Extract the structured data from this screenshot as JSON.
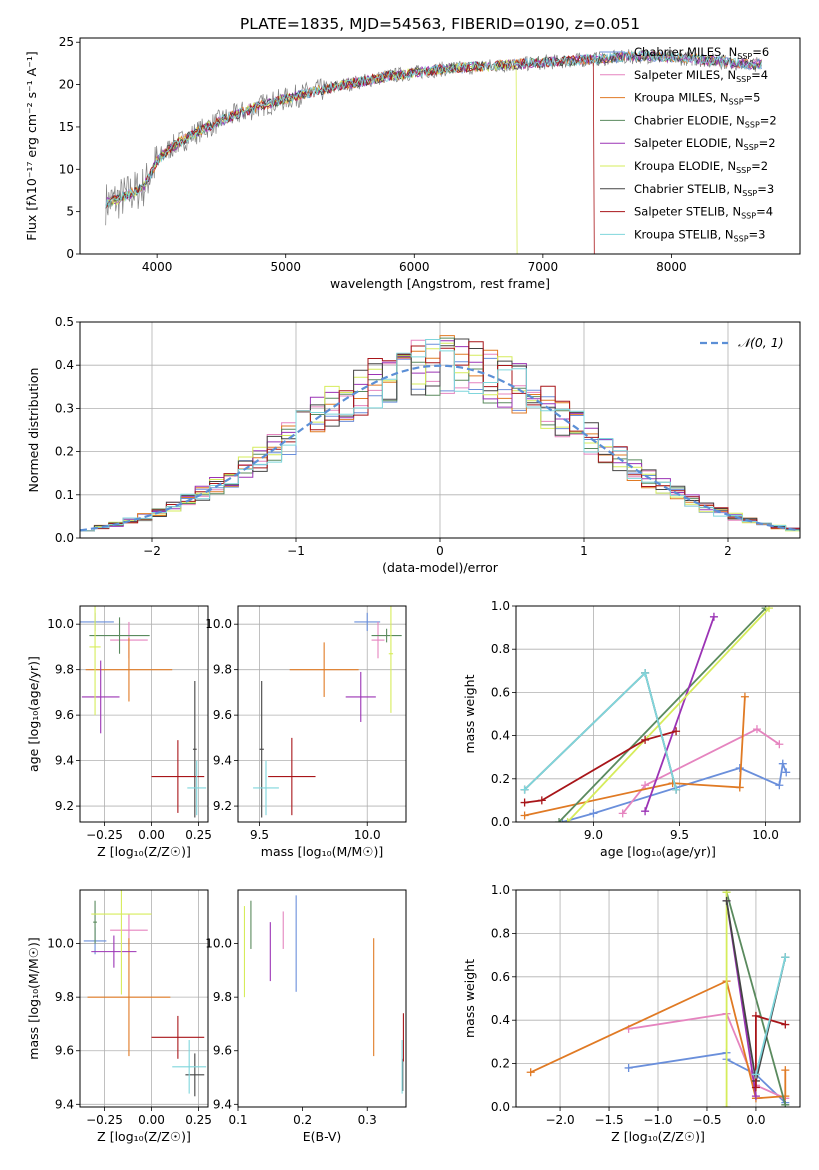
{
  "figure_title": "PLATE=1835, MJD=54563, FIBERID=0190, z=0.051",
  "colors": {
    "Chabrier MILES": "#6a8fdb",
    "Salpeter MILES": "#e584bf",
    "Kroupa MILES": "#e07a24",
    "Chabrier ELODIE": "#5a8a5e",
    "Salpeter ELODIE": "#9b33b5",
    "Kroupa ELODIE": "#d6ec5b",
    "Chabrier STELIB": "#444444",
    "Salpeter STELIB": "#a81519",
    "Kroupa STELIB": "#7fd6dc",
    "data": "#808080",
    "gaussian": "#5b8fd6"
  },
  "legend_spectrum": [
    {
      "name": "Chabrier MILES",
      "n": "6"
    },
    {
      "name": "Salpeter MILES",
      "n": "4"
    },
    {
      "name": "Kroupa MILES",
      "n": "5"
    },
    {
      "name": "Chabrier ELODIE",
      "n": "2"
    },
    {
      "name": "Salpeter ELODIE",
      "n": "2"
    },
    {
      "name": "Kroupa ELODIE",
      "n": "2"
    },
    {
      "name": "Chabrier STELIB",
      "n": "3"
    },
    {
      "name": "Salpeter STELIB",
      "n": "4"
    },
    {
      "name": "Kroupa STELIB",
      "n": "3"
    }
  ],
  "chart_data": [
    {
      "id": "spectrum",
      "type": "line",
      "xlabel": "wavelength [Angstrom, rest frame]",
      "ylabel": "Flux [fλ10⁻¹⁷ erg cm⁻² s⁻¹ A⁻¹]",
      "xlim": [
        3400,
        9000
      ],
      "ylim": [
        0,
        25.5
      ],
      "xticks": [
        4000,
        5000,
        6000,
        7000,
        8000
      ],
      "yticks": [
        0,
        5,
        10,
        15,
        20,
        25
      ],
      "grid": false,
      "legend": "top-right",
      "model_continuum": {
        "x": [
          3600,
          3700,
          3800,
          3900,
          4000,
          4100,
          4300,
          4500,
          4800,
          5100,
          5400,
          5800,
          6200,
          6600,
          7000,
          7400,
          7800,
          8200,
          8600
        ],
        "y": [
          6.0,
          6.5,
          7.2,
          8.0,
          11.0,
          12.5,
          14.3,
          15.8,
          17.5,
          18.7,
          19.8,
          21.0,
          21.8,
          22.2,
          22.6,
          23.0,
          23.4,
          23.0,
          22.4
        ]
      },
      "data_range": [
        3600,
        8700
      ],
      "model_end_wavelength": [
        8700,
        8700,
        8700,
        8700,
        8700,
        6800,
        8700,
        7400,
        8700
      ]
    },
    {
      "id": "residuals",
      "type": "histogram",
      "xlabel": "(data-model)/error",
      "ylabel": "Normed distribution",
      "xlim": [
        -2.5,
        2.5
      ],
      "ylim": [
        0,
        0.5
      ],
      "xticks": [
        -2,
        -1,
        0,
        1,
        2
      ],
      "yticks": [
        0.0,
        0.1,
        0.2,
        0.3,
        0.4,
        0.5
      ],
      "grid": true,
      "legend": "top-right",
      "gaussian_label": "𝒩(0, 1)",
      "bin_width": 0.1
    },
    {
      "id": "age-vs-Z",
      "type": "scatter",
      "xlabel": "Z [log₁₀(Z/Z☉)]",
      "ylabel": "age  [log₁₀(age/yr)]",
      "xlim": [
        -0.38,
        0.3
      ],
      "ylim": [
        9.13,
        10.08
      ],
      "xticks": [
        -0.25,
        0.0,
        0.25
      ],
      "yticks": [
        9.2,
        9.4,
        9.6,
        9.8,
        10.0
      ],
      "grid": true,
      "points": [
        {
          "model": "Chabrier MILES",
          "x": -0.3,
          "y": 10.01,
          "xerr": 0.1,
          "yerr": 0.04
        },
        {
          "model": "Salpeter MILES",
          "x": -0.12,
          "y": 9.93,
          "xerr": 0.1,
          "yerr": 0.08
        },
        {
          "model": "Kroupa MILES",
          "x": -0.12,
          "y": 9.8,
          "xerr": 0.23,
          "yerr": 0.14
        },
        {
          "model": "Chabrier ELODIE",
          "x": -0.17,
          "y": 9.95,
          "xerr": 0.16,
          "yerr": 0.08
        },
        {
          "model": "Salpeter ELODIE",
          "x": -0.27,
          "y": 9.68,
          "xerr": 0.1,
          "yerr": 0.16
        },
        {
          "model": "Kroupa ELODIE",
          "x": -0.3,
          "y": 9.9,
          "xerr": 0.03,
          "yerr": 0.3
        },
        {
          "model": "Chabrier STELIB",
          "x": 0.23,
          "y": 9.45,
          "xerr": 0.01,
          "yerr": 0.3
        },
        {
          "model": "Salpeter STELIB",
          "x": 0.14,
          "y": 9.33,
          "xerr": 0.14,
          "yerr": 0.16
        },
        {
          "model": "Kroupa STELIB",
          "x": 0.24,
          "y": 9.28,
          "xerr": 0.05,
          "yerr": 0.12
        }
      ]
    },
    {
      "id": "age-vs-mass",
      "type": "scatter",
      "xlabel": "mass [log₁₀(M/M☉)]",
      "ylabel": "",
      "xlim": [
        9.4,
        10.18
      ],
      "ylim": [
        9.13,
        10.08
      ],
      "xticks": [
        9.5,
        10.0
      ],
      "yticks": [
        9.2,
        9.4,
        9.6,
        9.8,
        10.0
      ],
      "grid": true,
      "points": [
        {
          "model": "Chabrier MILES",
          "x": 10.0,
          "y": 10.01,
          "xerr": 0.06,
          "yerr": 0.04
        },
        {
          "model": "Salpeter MILES",
          "x": 10.05,
          "y": 9.93,
          "xerr": 0.03,
          "yerr": 0.08
        },
        {
          "model": "Kroupa MILES",
          "x": 9.8,
          "y": 9.8,
          "xerr": 0.16,
          "yerr": 0.12
        },
        {
          "model": "Chabrier ELODIE",
          "x": 10.09,
          "y": 9.95,
          "xerr": 0.07,
          "yerr": 0.03
        },
        {
          "model": "Salpeter ELODIE",
          "x": 9.97,
          "y": 9.68,
          "xerr": 0.07,
          "yerr": 0.11
        },
        {
          "model": "Kroupa ELODIE",
          "x": 10.11,
          "y": 9.87,
          "xerr": 0.01,
          "yerr": 0.26
        },
        {
          "model": "Chabrier STELIB",
          "x": 9.51,
          "y": 9.45,
          "xerr": 0.01,
          "yerr": 0.3
        },
        {
          "model": "Salpeter STELIB",
          "x": 9.65,
          "y": 9.33,
          "xerr": 0.11,
          "yerr": 0.17
        },
        {
          "model": "Kroupa STELIB",
          "x": 9.53,
          "y": 9.28,
          "xerr": 0.06,
          "yerr": 0.12
        }
      ]
    },
    {
      "id": "mass-weight-vs-age",
      "type": "line",
      "xlabel": "age  [log₁₀(age/yr)]",
      "ylabel": "mass weight",
      "xlim": [
        8.55,
        10.2
      ],
      "ylim": [
        0,
        1
      ],
      "xticks": [
        9.0,
        9.5,
        10.0
      ],
      "yticks": [
        0.0,
        0.2,
        0.4,
        0.6,
        0.8,
        1.0
      ],
      "grid": true,
      "series": [
        {
          "model": "Chabrier MILES",
          "x": [
            8.82,
            9.0,
            9.85,
            10.08,
            10.1,
            10.12
          ],
          "y": [
            0.0,
            0.04,
            0.25,
            0.17,
            0.27,
            0.23
          ]
        },
        {
          "model": "Salpeter MILES",
          "x": [
            9.17,
            9.3,
            9.95,
            10.08
          ],
          "y": [
            0.04,
            0.17,
            0.43,
            0.36
          ]
        },
        {
          "model": "Kroupa MILES",
          "x": [
            8.6,
            9.46,
            9.85,
            9.88
          ],
          "y": [
            0.03,
            0.18,
            0.16,
            0.58
          ]
        },
        {
          "model": "Chabrier ELODIE",
          "x": [
            8.8,
            10.0
          ],
          "y": [
            0.0,
            0.99
          ]
        },
        {
          "model": "Salpeter ELODIE",
          "x": [
            9.3,
            9.7
          ],
          "y": [
            0.05,
            0.95
          ]
        },
        {
          "model": "Kroupa ELODIE",
          "x": [
            8.85,
            10.02
          ],
          "y": [
            0.0,
            0.99
          ]
        },
        {
          "model": "Chabrier STELIB",
          "x": [
            8.6,
            9.3,
            9.48
          ],
          "y": [
            0.15,
            0.69,
            0.15
          ]
        },
        {
          "model": "Salpeter STELIB",
          "x": [
            8.6,
            8.7,
            9.3,
            9.48
          ],
          "y": [
            0.09,
            0.1,
            0.38,
            0.42
          ]
        },
        {
          "model": "Kroupa STELIB",
          "x": [
            8.6,
            9.3,
            9.48
          ],
          "y": [
            0.15,
            0.69,
            0.15
          ]
        }
      ]
    },
    {
      "id": "mass-vs-Z",
      "type": "scatter",
      "xlabel": "Z [log₁₀(Z/Z☉)]",
      "ylabel": "mass [log₁₀(M/M☉)]",
      "xlim": [
        -0.38,
        0.3
      ],
      "ylim": [
        9.39,
        10.2
      ],
      "xticks": [
        -0.25,
        0.0,
        0.25
      ],
      "yticks": [
        9.4,
        9.6,
        9.8,
        10.0
      ],
      "grid": true,
      "points": [
        {
          "model": "Chabrier MILES",
          "x": -0.3,
          "y": 10.01,
          "xerr": 0.06,
          "yerr": 0.05
        },
        {
          "model": "Salpeter MILES",
          "x": -0.12,
          "y": 10.05,
          "xerr": 0.1,
          "yerr": 0.06
        },
        {
          "model": "Kroupa MILES",
          "x": -0.12,
          "y": 9.8,
          "xerr": 0.22,
          "yerr": 0.22
        },
        {
          "model": "Chabrier ELODIE",
          "x": -0.3,
          "y": 10.08,
          "xerr": 0.01,
          "yerr": 0.08
        },
        {
          "model": "Salpeter ELODIE",
          "x": -0.2,
          "y": 9.97,
          "xerr": 0.12,
          "yerr": 0.06
        },
        {
          "model": "Kroupa ELODIE",
          "x": -0.16,
          "y": 10.11,
          "xerr": 0.16,
          "yerr": 0.3
        },
        {
          "model": "Chabrier STELIB",
          "x": 0.23,
          "y": 9.51,
          "xerr": 0.05,
          "yerr": 0.08
        },
        {
          "model": "Salpeter STELIB",
          "x": 0.14,
          "y": 9.65,
          "xerr": 0.14,
          "yerr": 0.08
        },
        {
          "model": "Kroupa STELIB",
          "x": 0.2,
          "y": 9.54,
          "xerr": 0.09,
          "yerr": 0.1
        }
      ]
    },
    {
      "id": "mass-vs-EBV",
      "type": "scatter",
      "xlabel": "E(B-V)",
      "ylabel": "",
      "xlim": [
        0.1,
        0.36
      ],
      "ylim": [
        9.39,
        10.2
      ],
      "xticks": [
        0.1,
        0.2,
        0.3
      ],
      "yticks": [
        9.4,
        9.6,
        9.8,
        10.0
      ],
      "grid": false,
      "points": [
        {
          "model": "Chabrier MILES",
          "x": 0.19,
          "y": 10.0,
          "xerr": 0.0,
          "yerr": 0.18
        },
        {
          "model": "Salpeter MILES",
          "x": 0.17,
          "y": 10.05,
          "xerr": 0.0,
          "yerr": 0.07
        },
        {
          "model": "Kroupa MILES",
          "x": 0.31,
          "y": 9.8,
          "xerr": 0.0,
          "yerr": 0.22
        },
        {
          "model": "Chabrier ELODIE",
          "x": 0.12,
          "y": 10.07,
          "xerr": 0.0,
          "yerr": 0.09
        },
        {
          "model": "Salpeter ELODIE",
          "x": 0.15,
          "y": 9.97,
          "xerr": 0.0,
          "yerr": 0.11
        },
        {
          "model": "Kroupa ELODIE",
          "x": 0.11,
          "y": 9.97,
          "xerr": 0.0,
          "yerr": 0.17
        },
        {
          "model": "Chabrier STELIB",
          "x": 0.355,
          "y": 9.51,
          "xerr": 0.0,
          "yerr": 0.06
        },
        {
          "model": "Salpeter STELIB",
          "x": 0.356,
          "y": 9.65,
          "xerr": 0.0,
          "yerr": 0.09
        },
        {
          "model": "Kroupa STELIB",
          "x": 0.354,
          "y": 9.54,
          "xerr": 0.0,
          "yerr": 0.1
        }
      ]
    },
    {
      "id": "mass-weight-vs-Z",
      "type": "line",
      "xlabel": "Z [log₁₀(Z/Z☉)]",
      "ylabel": "mass weight",
      "xlim": [
        -2.45,
        0.45
      ],
      "ylim": [
        0,
        1
      ],
      "xticks": [
        -2.0,
        -1.5,
        -1.0,
        -0.5,
        0.0
      ],
      "yticks": [
        0.0,
        0.2,
        0.4,
        0.6,
        0.8,
        1.0
      ],
      "grid": true,
      "series": [
        {
          "model": "Chabrier MILES",
          "x": [
            -1.3,
            -0.3,
            -0.3,
            0.0,
            0.3
          ],
          "y": [
            0.18,
            0.25,
            0.22,
            0.15,
            0.02
          ]
        },
        {
          "model": "Salpeter MILES",
          "x": [
            -1.3,
            -0.3,
            0.0,
            0.3
          ],
          "y": [
            0.36,
            0.43,
            0.1,
            0.04
          ]
        },
        {
          "model": "Kroupa MILES",
          "x": [
            -2.3,
            -0.3,
            0.0,
            0.3,
            0.3
          ],
          "y": [
            0.16,
            0.58,
            0.04,
            0.05,
            0.17
          ]
        },
        {
          "model": "Chabrier ELODIE",
          "x": [
            -0.3,
            0.3
          ],
          "y": [
            0.99,
            0.01
          ]
        },
        {
          "model": "Salpeter ELODIE",
          "x": [
            -0.3,
            0.0
          ],
          "y": [
            0.95,
            0.05
          ]
        },
        {
          "model": "Kroupa ELODIE",
          "x": [
            -0.3,
            -0.3
          ],
          "y": [
            0.0,
            0.99
          ]
        },
        {
          "model": "Chabrier STELIB",
          "x": [
            -0.3,
            0.0,
            0.3
          ],
          "y": [
            0.95,
            0.12,
            0.69
          ]
        },
        {
          "model": "Salpeter STELIB",
          "x": [
            0.0,
            0.0,
            0.3
          ],
          "y": [
            0.09,
            0.42,
            0.38
          ]
        },
        {
          "model": "Kroupa STELIB",
          "x": [
            0.0,
            0.3
          ],
          "y": [
            0.15,
            0.69
          ]
        }
      ]
    }
  ]
}
